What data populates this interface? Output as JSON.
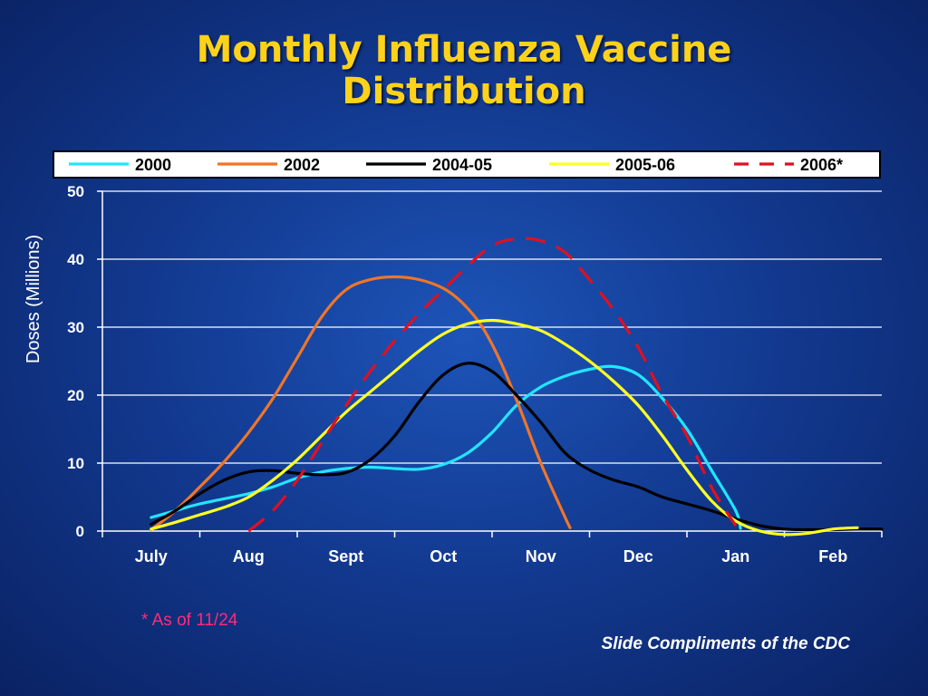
{
  "title_line1": "Monthly Influenza Vaccine",
  "title_line2": "Distribution",
  "footnote": "* As of 11/24",
  "credit": "Slide Compliments of the CDC",
  "colors": {
    "background": "#12398f",
    "title": "#ffd21a",
    "footnote": "#ff2a7a",
    "credit": "#ffffff",
    "grid": "#ffffff",
    "axis_text": "#ffffff"
  },
  "chart_data": {
    "type": "line",
    "ylabel": "Doses (Millions)",
    "xlabel": "",
    "categories": [
      "July",
      "Aug",
      "Sept",
      "Oct",
      "Nov",
      "Dec",
      "Jan",
      "Feb"
    ],
    "ylim": [
      0,
      50
    ],
    "yticks": [
      0,
      10,
      20,
      30,
      40,
      50
    ],
    "grid": true,
    "legend_placement": "top",
    "series": [
      {
        "name": "2000",
        "color": "#22e5ff",
        "dash": false,
        "points": [
          [
            0,
            2
          ],
          [
            0.25,
            3
          ],
          [
            0.5,
            4
          ],
          [
            1,
            5.5
          ],
          [
            1.25,
            6.5
          ],
          [
            1.5,
            7.8
          ],
          [
            1.75,
            8.7
          ],
          [
            2,
            9.2
          ],
          [
            2.25,
            9.4
          ],
          [
            2.5,
            9.2
          ],
          [
            2.75,
            9.1
          ],
          [
            3,
            9.8
          ],
          [
            3.25,
            11.5
          ],
          [
            3.5,
            14.5
          ],
          [
            3.75,
            18.5
          ],
          [
            4,
            21.2
          ],
          [
            4.25,
            22.8
          ],
          [
            4.5,
            23.8
          ],
          [
            4.75,
            24.2
          ],
          [
            5,
            23
          ],
          [
            5.25,
            19.5
          ],
          [
            5.5,
            15
          ],
          [
            5.75,
            9
          ],
          [
            6,
            3
          ],
          [
            6.05,
            0.4
          ]
        ]
      },
      {
        "name": "2002",
        "color": "#f07528",
        "dash": false,
        "points": [
          [
            0,
            0.2
          ],
          [
            0.25,
            3
          ],
          [
            0.5,
            6.5
          ],
          [
            0.75,
            10.2
          ],
          [
            1,
            14.5
          ],
          [
            1.25,
            19.5
          ],
          [
            1.5,
            25.5
          ],
          [
            1.75,
            31.5
          ],
          [
            2,
            35.5
          ],
          [
            2.25,
            37
          ],
          [
            2.5,
            37.4
          ],
          [
            2.75,
            37
          ],
          [
            3,
            35.7
          ],
          [
            3.2,
            33.5
          ],
          [
            3.4,
            30
          ],
          [
            3.6,
            24.5
          ],
          [
            3.8,
            17.5
          ],
          [
            4,
            10
          ],
          [
            4.25,
            2
          ],
          [
            4.3,
            0.5
          ]
        ]
      },
      {
        "name": "2004-05",
        "color": "#000000",
        "dash": false,
        "points": [
          [
            0,
            1
          ],
          [
            0.25,
            3
          ],
          [
            0.5,
            5.5
          ],
          [
            0.75,
            7.5
          ],
          [
            1,
            8.7
          ],
          [
            1.25,
            8.9
          ],
          [
            1.5,
            8.5
          ],
          [
            1.75,
            8.3
          ],
          [
            2,
            8.6
          ],
          [
            2.25,
            10.5
          ],
          [
            2.5,
            14
          ],
          [
            2.75,
            19
          ],
          [
            3,
            23
          ],
          [
            3.25,
            24.7
          ],
          [
            3.5,
            23.5
          ],
          [
            3.75,
            20
          ],
          [
            4,
            16
          ],
          [
            4.25,
            11.5
          ],
          [
            4.5,
            9
          ],
          [
            4.75,
            7.5
          ],
          [
            5,
            6.5
          ],
          [
            5.25,
            5
          ],
          [
            5.5,
            4
          ],
          [
            5.75,
            3
          ],
          [
            6,
            1.8
          ],
          [
            6.25,
            0.8
          ],
          [
            6.5,
            0.3
          ],
          [
            6.75,
            0.2
          ],
          [
            7,
            0.2
          ],
          [
            7.25,
            0.3
          ],
          [
            7.5,
            0.3
          ]
        ]
      },
      {
        "name": "2005-06",
        "color": "#ffff24",
        "dash": false,
        "points": [
          [
            0,
            0.3
          ],
          [
            0.25,
            1.3
          ],
          [
            0.5,
            2.4
          ],
          [
            0.75,
            3.5
          ],
          [
            1,
            5
          ],
          [
            1.25,
            7.5
          ],
          [
            1.5,
            10.5
          ],
          [
            1.75,
            14
          ],
          [
            2,
            17.5
          ],
          [
            2.25,
            20.5
          ],
          [
            2.5,
            23.5
          ],
          [
            2.75,
            26.5
          ],
          [
            3,
            29
          ],
          [
            3.25,
            30.5
          ],
          [
            3.5,
            31
          ],
          [
            3.75,
            30.5
          ],
          [
            4,
            29.5
          ],
          [
            4.25,
            27.5
          ],
          [
            4.5,
            25
          ],
          [
            4.75,
            22
          ],
          [
            5,
            18.5
          ],
          [
            5.25,
            14
          ],
          [
            5.5,
            9
          ],
          [
            5.75,
            4.5
          ],
          [
            6,
            1.5
          ],
          [
            6.25,
            0
          ],
          [
            6.5,
            -0.5
          ],
          [
            6.75,
            -0.3
          ],
          [
            7,
            0.3
          ],
          [
            7.25,
            0.5
          ]
        ]
      },
      {
        "name": "2006*",
        "color": "#e01020",
        "dash": true,
        "points": [
          [
            1,
            0
          ],
          [
            1.25,
            3
          ],
          [
            1.5,
            7.5
          ],
          [
            1.75,
            13
          ],
          [
            2,
            18.5
          ],
          [
            2.25,
            23.5
          ],
          [
            2.5,
            28
          ],
          [
            2.75,
            32
          ],
          [
            3,
            35.5
          ],
          [
            3.25,
            39
          ],
          [
            3.5,
            42
          ],
          [
            3.75,
            43
          ],
          [
            4,
            42.7
          ],
          [
            4.25,
            41
          ],
          [
            4.5,
            37
          ],
          [
            4.75,
            32.5
          ],
          [
            5,
            27
          ],
          [
            5.25,
            20
          ],
          [
            5.5,
            14
          ],
          [
            5.75,
            6.5
          ],
          [
            6,
            0.8
          ]
        ]
      }
    ]
  }
}
